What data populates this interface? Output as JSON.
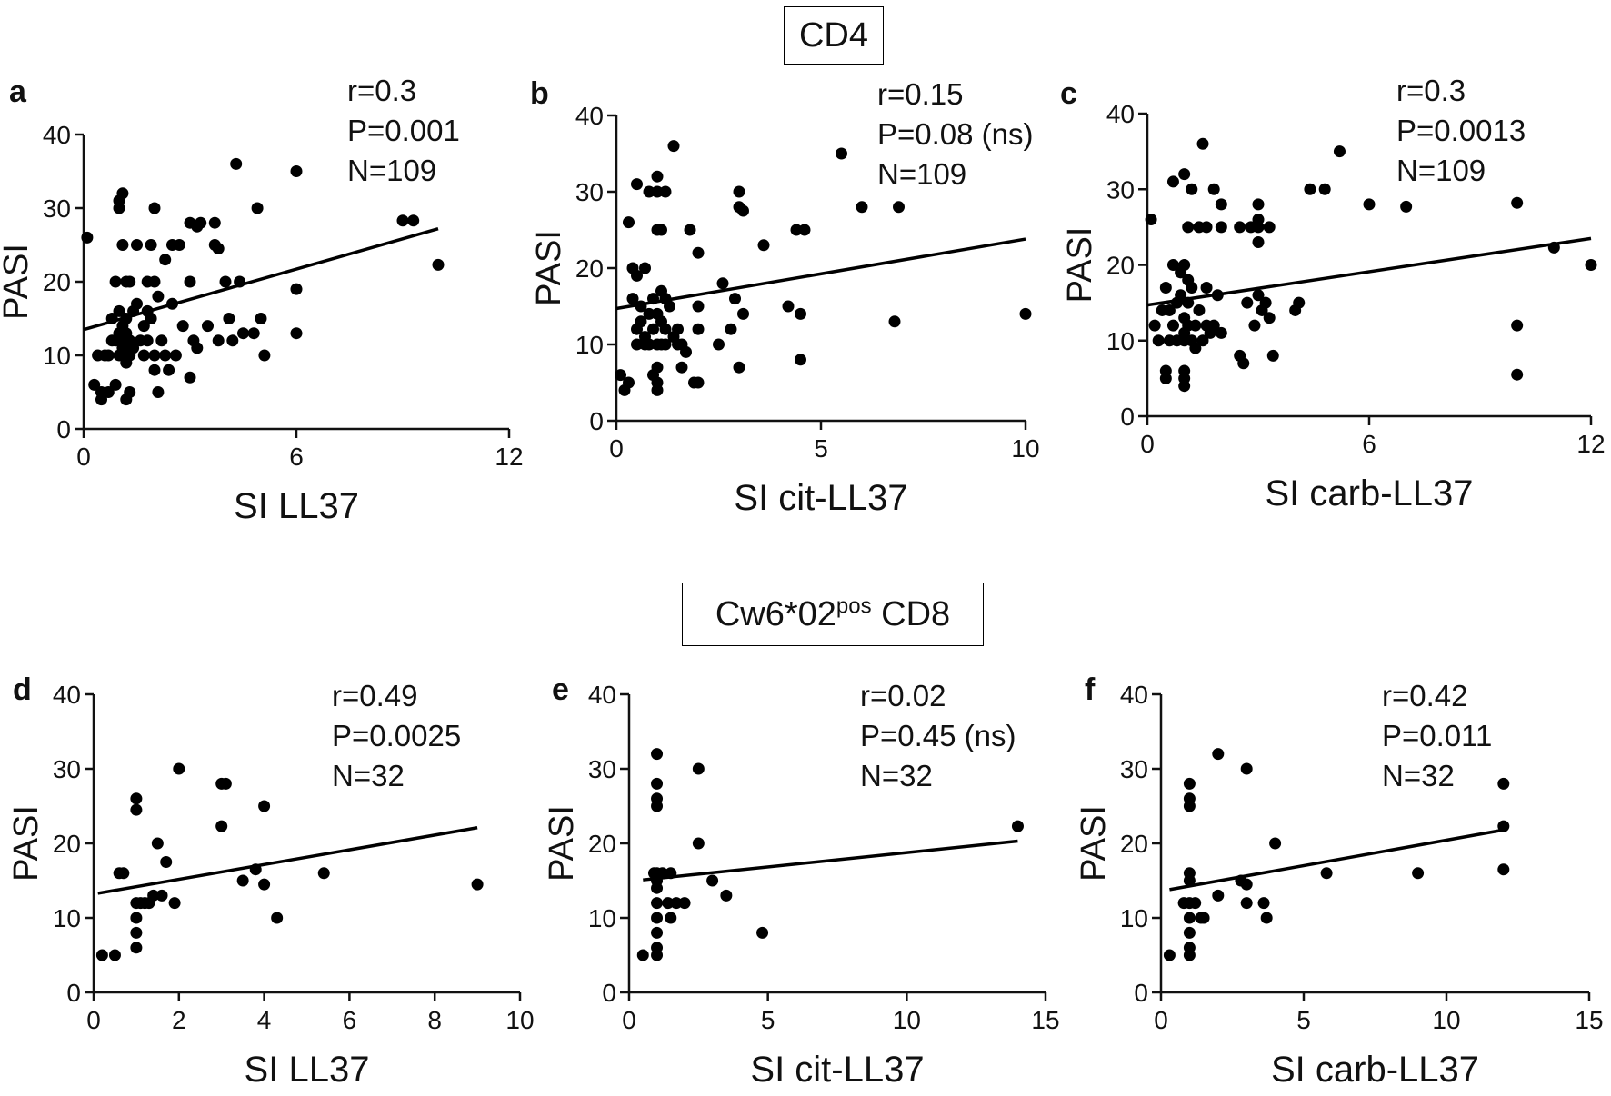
{
  "figure": {
    "section_top": "CD4",
    "section_bottom": {
      "base": "Cw6*02",
      "sup": "pos",
      "tail": " CD8"
    }
  },
  "chart_data": [
    {
      "panel": "a",
      "type": "scatter",
      "ylabel": "PASI",
      "xlabel": "SI LL37",
      "xlim": [
        0,
        12
      ],
      "ylim": [
        0,
        40
      ],
      "xticks": [
        0,
        6,
        12
      ],
      "yticks": [
        0,
        10,
        20,
        30,
        40
      ],
      "stats": [
        "r=0.3",
        "P=0.001",
        "N=109"
      ],
      "fit": [
        [
          0,
          13.5
        ],
        [
          10,
          27.2
        ]
      ],
      "points": [
        [
          0.1,
          26
        ],
        [
          0.3,
          6
        ],
        [
          0.4,
          10
        ],
        [
          0.5,
          5
        ],
        [
          0.5,
          4
        ],
        [
          0.6,
          10
        ],
        [
          0.7,
          10
        ],
        [
          0.7,
          5
        ],
        [
          0.8,
          15
        ],
        [
          0.8,
          12
        ],
        [
          0.9,
          6
        ],
        [
          0.9,
          20
        ],
        [
          0.9,
          12
        ],
        [
          1,
          13
        ],
        [
          1,
          10
        ],
        [
          1,
          30
        ],
        [
          1,
          31
        ],
        [
          1,
          16
        ],
        [
          1,
          12
        ],
        [
          1.1,
          32
        ],
        [
          1.1,
          25
        ],
        [
          1.1,
          14
        ],
        [
          1.1,
          11
        ],
        [
          1.2,
          20
        ],
        [
          1.2,
          15
        ],
        [
          1.2,
          13
        ],
        [
          1.2,
          9
        ],
        [
          1.2,
          4
        ],
        [
          1.3,
          5
        ],
        [
          1.3,
          10
        ],
        [
          1.3,
          12
        ],
        [
          1.3,
          20
        ],
        [
          1.4,
          16
        ],
        [
          1.4,
          11
        ],
        [
          1.5,
          25
        ],
        [
          1.5,
          17
        ],
        [
          1.6,
          12
        ],
        [
          1.7,
          14
        ],
        [
          1.7,
          10
        ],
        [
          1.8,
          20
        ],
        [
          1.8,
          16
        ],
        [
          1.8,
          12
        ],
        [
          1.9,
          25
        ],
        [
          1.9,
          15
        ],
        [
          2,
          30
        ],
        [
          2,
          20
        ],
        [
          2,
          10
        ],
        [
          2,
          8
        ],
        [
          2.1,
          5
        ],
        [
          2.1,
          18
        ],
        [
          2.2,
          12
        ],
        [
          2.3,
          23
        ],
        [
          2.3,
          10
        ],
        [
          2.4,
          8
        ],
        [
          2.5,
          25
        ],
        [
          2.5,
          17
        ],
        [
          2.6,
          10
        ],
        [
          2.7,
          25
        ],
        [
          2.8,
          14
        ],
        [
          3,
          28
        ],
        [
          3,
          20
        ],
        [
          3,
          7
        ],
        [
          3.1,
          12
        ],
        [
          3.2,
          11
        ],
        [
          3.2,
          27.5
        ],
        [
          3.3,
          28
        ],
        [
          3.5,
          14
        ],
        [
          3.7,
          25
        ],
        [
          3.7,
          28
        ],
        [
          3.8,
          24.5
        ],
        [
          3.8,
          12
        ],
        [
          4,
          20
        ],
        [
          4.1,
          15
        ],
        [
          4.2,
          12
        ],
        [
          4.3,
          36
        ],
        [
          4.4,
          20
        ],
        [
          4.5,
          13
        ],
        [
          4.8,
          13
        ],
        [
          4.9,
          30
        ],
        [
          5,
          15
        ],
        [
          5.1,
          10
        ],
        [
          6,
          35
        ],
        [
          6,
          19
        ],
        [
          6,
          13
        ],
        [
          9,
          28.3
        ],
        [
          9.3,
          28.3
        ],
        [
          10,
          22.3
        ]
      ]
    },
    {
      "panel": "b",
      "type": "scatter",
      "ylabel": "PASI",
      "xlabel": "SI cit-LL37",
      "xlim": [
        0,
        10
      ],
      "ylim": [
        0,
        40
      ],
      "xticks": [
        0,
        5,
        10
      ],
      "yticks": [
        0,
        10,
        20,
        30,
        40
      ],
      "stats": [
        "r=0.15",
        "P=0.08 (ns)",
        "N=109"
      ],
      "fit": [
        [
          0,
          14.7
        ],
        [
          10,
          23.8
        ]
      ],
      "points": [
        [
          0.1,
          6
        ],
        [
          0.2,
          4
        ],
        [
          0.3,
          26
        ],
        [
          0.3,
          5
        ],
        [
          0.4,
          16
        ],
        [
          0.4,
          20
        ],
        [
          0.5,
          31
        ],
        [
          0.5,
          19
        ],
        [
          0.5,
          12
        ],
        [
          0.5,
          10
        ],
        [
          0.6,
          13
        ],
        [
          0.6,
          15
        ],
        [
          0.7,
          20
        ],
        [
          0.7,
          11
        ],
        [
          0.7,
          10
        ],
        [
          0.8,
          14
        ],
        [
          0.8,
          10
        ],
        [
          0.8,
          30
        ],
        [
          0.9,
          16
        ],
        [
          0.9,
          12
        ],
        [
          0.9,
          6
        ],
        [
          1,
          30
        ],
        [
          1,
          32
        ],
        [
          1,
          25
        ],
        [
          1,
          14
        ],
        [
          1,
          10
        ],
        [
          1,
          7
        ],
        [
          1,
          5
        ],
        [
          1,
          4
        ],
        [
          1.1,
          25
        ],
        [
          1.1,
          17
        ],
        [
          1.1,
          13
        ],
        [
          1.1,
          10
        ],
        [
          1.2,
          30
        ],
        [
          1.2,
          16
        ],
        [
          1.2,
          12
        ],
        [
          1.2,
          10
        ],
        [
          1.3,
          15
        ],
        [
          1.4,
          36
        ],
        [
          1.4,
          11
        ],
        [
          1.5,
          12
        ],
        [
          1.5,
          10
        ],
        [
          1.6,
          10
        ],
        [
          1.6,
          7
        ],
        [
          1.7,
          9
        ],
        [
          1.8,
          25
        ],
        [
          1.9,
          5
        ],
        [
          2,
          22
        ],
        [
          2,
          12
        ],
        [
          2,
          15
        ],
        [
          2,
          5
        ],
        [
          2.5,
          10
        ],
        [
          2.6,
          18
        ],
        [
          2.8,
          12
        ],
        [
          2.9,
          16
        ],
        [
          3,
          7
        ],
        [
          3,
          28
        ],
        [
          3,
          30
        ],
        [
          3.1,
          27.5
        ],
        [
          3.1,
          14
        ],
        [
          3.6,
          23
        ],
        [
          4.2,
          15
        ],
        [
          4.4,
          25
        ],
        [
          4.5,
          14
        ],
        [
          4.5,
          8
        ],
        [
          4.6,
          25
        ],
        [
          5.5,
          35
        ],
        [
          6,
          28
        ],
        [
          6.8,
          13
        ],
        [
          6.9,
          28
        ],
        [
          10,
          14
        ]
      ]
    },
    {
      "panel": "c",
      "type": "scatter",
      "ylabel": "PASI",
      "xlabel": "SI carb-LL37",
      "xlim": [
        0,
        12
      ],
      "ylim": [
        0,
        40
      ],
      "xticks": [
        0,
        6,
        12
      ],
      "yticks": [
        0,
        10,
        20,
        30,
        40
      ],
      "stats": [
        "r=0.3",
        "P=0.0013",
        "N=109"
      ],
      "fit": [
        [
          0,
          14.7
        ],
        [
          12,
          23.5
        ]
      ],
      "points": [
        [
          0.1,
          26
        ],
        [
          0.2,
          12
        ],
        [
          0.3,
          10
        ],
        [
          0.4,
          14
        ],
        [
          0.5,
          6
        ],
        [
          0.5,
          5
        ],
        [
          0.5,
          17
        ],
        [
          0.6,
          10
        ],
        [
          0.6,
          14
        ],
        [
          0.7,
          31
        ],
        [
          0.7,
          20
        ],
        [
          0.7,
          12
        ],
        [
          0.8,
          10
        ],
        [
          0.8,
          15
        ],
        [
          0.9,
          19
        ],
        [
          0.9,
          16
        ],
        [
          1,
          32
        ],
        [
          1,
          20
        ],
        [
          1,
          13
        ],
        [
          1,
          11
        ],
        [
          1,
          10
        ],
        [
          1,
          6
        ],
        [
          1,
          5
        ],
        [
          1,
          4
        ],
        [
          1.1,
          25
        ],
        [
          1.1,
          18
        ],
        [
          1.1,
          15
        ],
        [
          1.1,
          12
        ],
        [
          1.2,
          30
        ],
        [
          1.2,
          17
        ],
        [
          1.2,
          10
        ],
        [
          1.3,
          12
        ],
        [
          1.3,
          9
        ],
        [
          1.4,
          25
        ],
        [
          1.4,
          14
        ],
        [
          1.5,
          36
        ],
        [
          1.5,
          10
        ],
        [
          1.6,
          25
        ],
        [
          1.6,
          17
        ],
        [
          1.6,
          12
        ],
        [
          1.7,
          11
        ],
        [
          1.8,
          30
        ],
        [
          1.8,
          12
        ],
        [
          1.9,
          16
        ],
        [
          2,
          28
        ],
        [
          2,
          25
        ],
        [
          2,
          11
        ],
        [
          2.5,
          25
        ],
        [
          2.5,
          8
        ],
        [
          2.6,
          7
        ],
        [
          2.7,
          15
        ],
        [
          2.8,
          25
        ],
        [
          2.9,
          12
        ],
        [
          3,
          25
        ],
        [
          3,
          26
        ],
        [
          3,
          23
        ],
        [
          3,
          28
        ],
        [
          3,
          16
        ],
        [
          3.1,
          14
        ],
        [
          3.2,
          15
        ],
        [
          3.3,
          25
        ],
        [
          3.3,
          13
        ],
        [
          3.4,
          8
        ],
        [
          4,
          14
        ],
        [
          4.1,
          15
        ],
        [
          4.4,
          30
        ],
        [
          4.8,
          30
        ],
        [
          5.2,
          35
        ],
        [
          6,
          28
        ],
        [
          7,
          27.7
        ],
        [
          10,
          28.2
        ],
        [
          10,
          12
        ],
        [
          10,
          5.5
        ],
        [
          11,
          22.3
        ],
        [
          12,
          20
        ]
      ]
    },
    {
      "panel": "d",
      "type": "scatter",
      "ylabel": "PASI",
      "xlabel": "SI LL37",
      "xlim": [
        0,
        10
      ],
      "ylim": [
        0,
        40
      ],
      "xticks": [
        0,
        2,
        4,
        6,
        8,
        10
      ],
      "yticks": [
        0,
        10,
        20,
        30,
        40
      ],
      "stats": [
        "r=0.49",
        "P=0.0025",
        "N=32"
      ],
      "fit": [
        [
          0.1,
          13.3
        ],
        [
          9,
          22.1
        ]
      ],
      "points": [
        [
          0.2,
          5
        ],
        [
          0.5,
          5
        ],
        [
          0.6,
          16
        ],
        [
          0.7,
          16
        ],
        [
          1,
          26
        ],
        [
          1,
          24.5
        ],
        [
          1,
          12
        ],
        [
          1,
          10
        ],
        [
          1,
          8
        ],
        [
          1,
          6
        ],
        [
          1.1,
          12
        ],
        [
          1.2,
          12
        ],
        [
          1.3,
          12
        ],
        [
          1.4,
          13
        ],
        [
          1.5,
          20
        ],
        [
          1.6,
          13
        ],
        [
          1.7,
          17.5
        ],
        [
          1.9,
          12
        ],
        [
          2,
          30
        ],
        [
          3,
          28
        ],
        [
          3,
          22.3
        ],
        [
          3.1,
          28
        ],
        [
          3.5,
          15
        ],
        [
          3.8,
          16.5
        ],
        [
          4,
          25
        ],
        [
          4,
          14.5
        ],
        [
          4.3,
          10
        ],
        [
          5.4,
          16
        ],
        [
          9,
          14.5
        ]
      ]
    },
    {
      "panel": "e",
      "type": "scatter",
      "ylabel": "PASI",
      "xlabel": "SI cit-LL37",
      "xlim": [
        0,
        15
      ],
      "ylim": [
        0,
        40
      ],
      "xticks": [
        0,
        5,
        10,
        15
      ],
      "yticks": [
        0,
        10,
        20,
        30,
        40
      ],
      "stats": [
        "r=0.02",
        "P=0.45 (ns)",
        "N=32"
      ],
      "fit": [
        [
          0.5,
          15.1
        ],
        [
          14,
          20.3
        ]
      ],
      "points": [
        [
          0.5,
          5
        ],
        [
          0.9,
          16
        ],
        [
          1,
          32
        ],
        [
          1,
          28
        ],
        [
          1,
          26
        ],
        [
          1,
          25
        ],
        [
          1,
          16
        ],
        [
          1,
          15
        ],
        [
          1,
          14
        ],
        [
          1,
          12
        ],
        [
          1,
          10
        ],
        [
          1,
          8
        ],
        [
          1,
          6
        ],
        [
          1,
          5
        ],
        [
          1.2,
          16
        ],
        [
          1.4,
          12
        ],
        [
          1.5,
          16
        ],
        [
          1.5,
          10
        ],
        [
          1.7,
          12
        ],
        [
          2,
          12
        ],
        [
          2.5,
          30
        ],
        [
          2.5,
          20
        ],
        [
          3,
          15
        ],
        [
          3.5,
          13
        ],
        [
          4.8,
          8
        ],
        [
          14,
          22.3
        ]
      ]
    },
    {
      "panel": "f",
      "type": "scatter",
      "ylabel": "PASI",
      "xlabel": "SI carb-LL37",
      "xlim": [
        0,
        15
      ],
      "ylim": [
        0,
        40
      ],
      "xticks": [
        0,
        5,
        10,
        15
      ],
      "yticks": [
        0,
        10,
        20,
        30,
        40
      ],
      "stats": [
        "r=0.42",
        "P=0.011",
        "N=32"
      ],
      "fit": [
        [
          0.3,
          13.8
        ],
        [
          12,
          21.8
        ]
      ],
      "points": [
        [
          0.3,
          5
        ],
        [
          0.8,
          12
        ],
        [
          1,
          28
        ],
        [
          1,
          26
        ],
        [
          1,
          25
        ],
        [
          1,
          16
        ],
        [
          1,
          15
        ],
        [
          1,
          12
        ],
        [
          1,
          10
        ],
        [
          1,
          8
        ],
        [
          1,
          6
        ],
        [
          1,
          5
        ],
        [
          1.2,
          12
        ],
        [
          1.4,
          10
        ],
        [
          1.5,
          10
        ],
        [
          2,
          32
        ],
        [
          2,
          13
        ],
        [
          2.8,
          15
        ],
        [
          3,
          30
        ],
        [
          3,
          14.5
        ],
        [
          3,
          12
        ],
        [
          3.6,
          12
        ],
        [
          3.7,
          10
        ],
        [
          4,
          20
        ],
        [
          5.8,
          16
        ],
        [
          9,
          16
        ],
        [
          12,
          28
        ],
        [
          12,
          22.3
        ],
        [
          12,
          16.5
        ]
      ]
    }
  ]
}
